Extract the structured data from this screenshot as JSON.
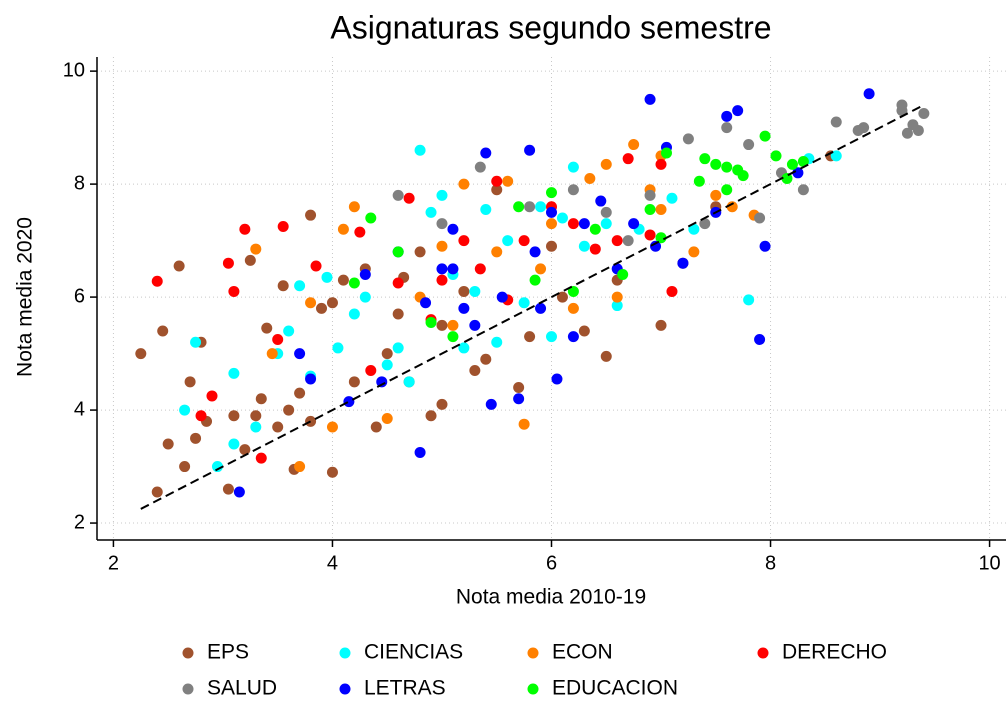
{
  "chart_data": {
    "type": "scatter",
    "title": "Asignaturas segundo semestre",
    "x_label": "Nota media 2010-19",
    "y_label": "Nota media 2020",
    "xlim": [
      1.85,
      10.15
    ],
    "ylim": [
      1.7,
      10.25
    ],
    "xticks": [
      2,
      4,
      6,
      8,
      10
    ],
    "yticks": [
      2,
      4,
      6,
      8,
      10
    ],
    "grid": true,
    "diagonal": {
      "x": [
        2.25,
        9.4
      ],
      "y": [
        2.25,
        9.4
      ]
    },
    "series": [
      {
        "name": "EPS",
        "color": "#a0522d",
        "x": [
          2.25,
          2.4,
          2.45,
          2.5,
          2.6,
          2.65,
          2.7,
          2.75,
          2.8,
          2.85,
          3.05,
          3.1,
          3.2,
          3.25,
          3.3,
          3.35,
          3.4,
          3.5,
          3.55,
          3.6,
          3.65,
          3.7,
          3.8,
          3.8,
          3.9,
          4.0,
          4.0,
          4.1,
          4.2,
          4.3,
          4.4,
          4.5,
          4.6,
          4.7,
          4.8,
          4.9,
          5.0,
          5.0,
          5.2,
          5.3,
          5.4,
          5.5,
          5.7,
          5.8,
          6.0,
          6.3,
          6.5,
          6.6,
          7.0,
          7.2,
          7.5,
          8.55,
          6.1,
          4.65
        ],
        "values": [
          5.0,
          2.55,
          5.4,
          3.4,
          6.55,
          3.0,
          4.5,
          3.5,
          5.2,
          3.8,
          2.6,
          3.9,
          3.3,
          6.65,
          3.9,
          4.2,
          5.45,
          3.7,
          6.2,
          4.0,
          2.95,
          4.3,
          7.45,
          3.8,
          5.8,
          2.9,
          5.9,
          6.3,
          4.5,
          6.5,
          3.7,
          5.0,
          5.7,
          4.5,
          6.8,
          3.9,
          4.1,
          5.5,
          6.1,
          4.7,
          4.9,
          7.9,
          4.4,
          5.3,
          6.9,
          5.4,
          4.95,
          6.3,
          5.5,
          6.6,
          7.6,
          8.5,
          6.0,
          6.35
        ]
      },
      {
        "name": "CIENCIAS",
        "color": "#00ffff",
        "x": [
          2.65,
          2.75,
          2.95,
          3.1,
          3.1,
          3.3,
          3.5,
          3.6,
          3.7,
          3.8,
          3.95,
          4.05,
          4.2,
          4.3,
          4.5,
          4.6,
          4.7,
          4.8,
          4.9,
          5.0,
          5.1,
          5.2,
          5.3,
          5.4,
          5.5,
          5.6,
          5.75,
          5.9,
          6.0,
          6.1,
          6.2,
          6.3,
          6.5,
          6.6,
          6.8,
          7.1,
          7.3,
          7.8,
          8.35,
          8.6
        ],
        "values": [
          4.0,
          5.2,
          3.0,
          3.4,
          4.65,
          3.7,
          5.0,
          5.4,
          6.2,
          4.6,
          6.35,
          5.1,
          5.7,
          6.0,
          4.8,
          5.1,
          4.5,
          8.6,
          7.5,
          7.8,
          6.4,
          5.1,
          6.1,
          7.55,
          5.2,
          7.0,
          5.9,
          7.6,
          5.3,
          7.4,
          8.3,
          6.9,
          7.3,
          5.85,
          7.2,
          7.75,
          7.2,
          5.95,
          8.45,
          8.5
        ]
      },
      {
        "name": "ECON",
        "color": "#ff8000",
        "x": [
          3.3,
          3.45,
          3.7,
          3.8,
          4.0,
          4.1,
          4.2,
          4.5,
          4.8,
          5.0,
          5.1,
          5.2,
          5.5,
          5.6,
          5.75,
          5.9,
          6.0,
          6.2,
          6.35,
          6.5,
          6.6,
          6.75,
          6.9,
          7.0,
          7.3,
          7.5,
          7.85,
          7.65,
          7.0
        ],
        "values": [
          6.85,
          5.0,
          3.0,
          5.9,
          3.7,
          7.2,
          7.6,
          3.85,
          6.0,
          6.9,
          5.5,
          8.0,
          6.8,
          8.05,
          3.75,
          6.5,
          7.3,
          5.8,
          8.1,
          8.35,
          6.0,
          8.7,
          7.9,
          7.55,
          6.8,
          7.8,
          7.45,
          7.6,
          8.5
        ]
      },
      {
        "name": "DERECHO",
        "color": "#ff0000",
        "x": [
          2.4,
          2.8,
          2.9,
          3.05,
          3.1,
          3.2,
          3.35,
          3.5,
          3.55,
          3.85,
          4.25,
          4.35,
          4.6,
          4.7,
          4.9,
          5.0,
          5.2,
          5.35,
          5.5,
          5.6,
          5.75,
          6.0,
          6.2,
          6.4,
          6.6,
          6.7,
          6.9,
          7.1,
          7.0
        ],
        "values": [
          6.28,
          3.9,
          4.25,
          6.6,
          6.1,
          7.2,
          3.15,
          5.25,
          7.25,
          6.55,
          7.15,
          4.7,
          6.25,
          7.75,
          5.6,
          6.3,
          7.0,
          6.5,
          8.05,
          5.95,
          7.0,
          7.6,
          7.3,
          6.85,
          7.0,
          8.45,
          7.1,
          6.1,
          8.35
        ]
      },
      {
        "name": "SALUD",
        "color": "#808080",
        "x": [
          4.6,
          5.35,
          5.0,
          5.8,
          6.2,
          6.5,
          6.7,
          6.9,
          7.25,
          7.4,
          7.6,
          7.8,
          7.9,
          8.1,
          8.3,
          8.6,
          8.8,
          8.85,
          9.2,
          9.25,
          9.3,
          9.35,
          9.4,
          9.2
        ],
        "values": [
          7.8,
          8.3,
          7.3,
          7.6,
          7.9,
          7.5,
          7.0,
          7.8,
          8.8,
          7.3,
          9.0,
          8.7,
          7.4,
          8.2,
          7.9,
          9.1,
          8.95,
          9.0,
          9.3,
          8.9,
          9.05,
          8.95,
          9.25,
          9.4
        ]
      },
      {
        "name": "LETRAS",
        "color": "#0000ff",
        "x": [
          3.15,
          3.7,
          3.8,
          4.15,
          4.3,
          4.45,
          4.6,
          4.8,
          4.85,
          5.0,
          5.1,
          5.2,
          5.3,
          5.4,
          5.45,
          5.55,
          5.7,
          5.8,
          5.85,
          6.0,
          6.05,
          6.2,
          6.3,
          6.45,
          6.6,
          6.75,
          6.9,
          6.95,
          7.05,
          7.2,
          7.5,
          7.6,
          7.7,
          7.9,
          7.95,
          8.25,
          8.9,
          5.1,
          5.9
        ],
        "values": [
          2.55,
          5.0,
          4.55,
          4.15,
          6.4,
          4.5,
          6.8,
          3.25,
          5.9,
          6.5,
          7.2,
          5.8,
          5.5,
          8.55,
          4.1,
          6.0,
          4.2,
          8.6,
          6.8,
          7.5,
          4.55,
          5.3,
          7.3,
          7.7,
          6.5,
          7.3,
          9.5,
          6.9,
          8.65,
          6.6,
          7.5,
          9.2,
          9.3,
          5.25,
          6.9,
          8.2,
          9.6,
          6.5,
          5.8
        ]
      },
      {
        "name": "EDUCACION",
        "color": "#00ff00",
        "x": [
          4.2,
          4.35,
          4.6,
          4.9,
          5.1,
          5.7,
          5.85,
          6.0,
          6.2,
          6.4,
          6.65,
          6.9,
          7.0,
          7.05,
          7.35,
          7.5,
          7.6,
          7.7,
          7.75,
          7.95,
          8.05,
          8.15,
          8.2,
          8.3,
          7.6,
          7.4
        ],
        "values": [
          6.25,
          7.4,
          6.8,
          5.55,
          5.3,
          7.6,
          6.3,
          7.85,
          6.1,
          7.2,
          6.4,
          7.55,
          7.05,
          8.55,
          8.05,
          8.35,
          7.9,
          8.25,
          8.15,
          8.85,
          8.5,
          8.1,
          8.35,
          8.4,
          8.3,
          8.45
        ]
      }
    ]
  }
}
